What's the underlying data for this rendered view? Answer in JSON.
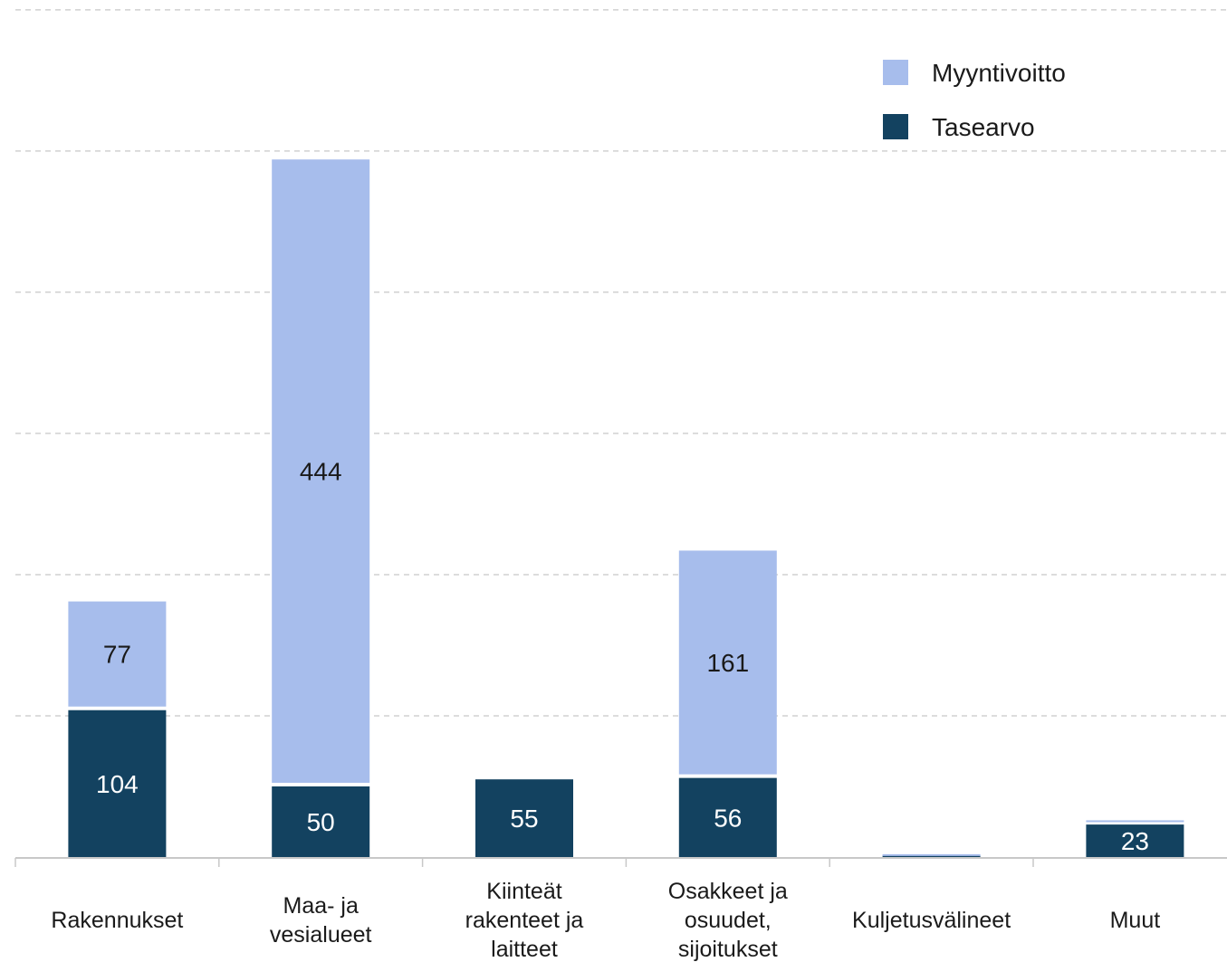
{
  "colors": {
    "myyntivoitto": "#a7bdec",
    "tasearvo": "#134260",
    "grid": "#d0d0d0",
    "axis": "#c8c8c8"
  },
  "chart_data": {
    "type": "bar",
    "stacked": true,
    "title": "",
    "xlabel": "",
    "ylabel": "",
    "ylim": [
      0,
      600
    ],
    "grid": true,
    "legend_position": "top-right",
    "categories": [
      [
        "Rakennukset"
      ],
      [
        "Maa- ja",
        "vesialueet"
      ],
      [
        "Kiinteät",
        "rakenteet ja",
        "laitteet"
      ],
      [
        "Osakkeet ja",
        "osuudet,",
        "sijoitukset"
      ],
      [
        "Kuljetusvälineet"
      ],
      [
        "Muut"
      ]
    ],
    "series": [
      {
        "name": "Tasearvo",
        "color_key": "tasearvo",
        "values": [
          104,
          50,
          55,
          56,
          1,
          23
        ],
        "labels": [
          "104",
          "50",
          "55",
          "56",
          "",
          "23"
        ],
        "label_color": "#ffffff"
      },
      {
        "name": "Myyntivoitto",
        "color_key": "myyntivoitto",
        "values": [
          77,
          444,
          0,
          161,
          1,
          3
        ],
        "labels": [
          "77",
          "444",
          "",
          "161",
          "",
          ""
        ],
        "label_color": "#1a1a1a"
      }
    ],
    "legend": [
      "Myyntivoitto",
      "Tasearvo"
    ]
  }
}
